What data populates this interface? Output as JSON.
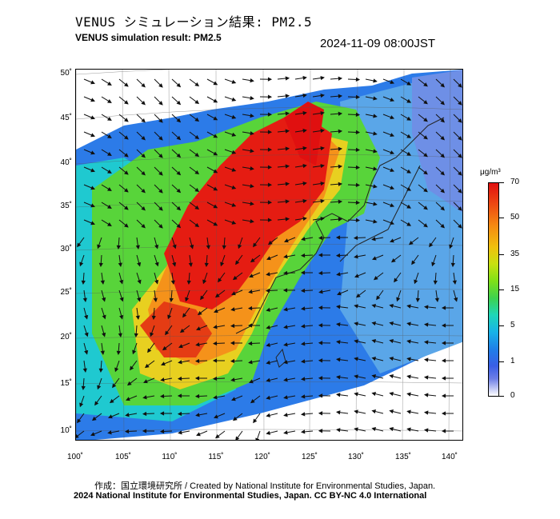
{
  "title_jp": "VENUS シミュレーション結果: PM2.5",
  "title_en": "VENUS simulation result: PM2.5",
  "timestamp": "2024-11-09 08:00JST",
  "axes": {
    "lat_labels": [
      "50˚",
      "45˚",
      "40˚",
      "35˚",
      "30˚",
      "25˚",
      "20˚",
      "15˚",
      "10˚"
    ],
    "lon_labels": [
      "100˚",
      "105˚",
      "110˚",
      "115˚",
      "120˚",
      "125˚",
      "130˚",
      "135˚",
      "140˚"
    ]
  },
  "colorbar": {
    "unit": "μg/m³",
    "ticks": [
      "70",
      "50",
      "35",
      "15",
      "5",
      "1",
      "0"
    ]
  },
  "footer": {
    "credit": "作成：国立環境研究所 / Created by National Institute for Environmental Studies, Japan.",
    "copyright": "2024 National Institute for Environmental Studies, Japan. CC BY-NC 4.0 International"
  },
  "colors": {
    "high": "#e01010",
    "mid_high": "#f58a12",
    "mid": "#7fe018",
    "low_mid": "#1ed7b8",
    "low": "#1f7fe8",
    "very_low": "#6e7fe6"
  }
}
